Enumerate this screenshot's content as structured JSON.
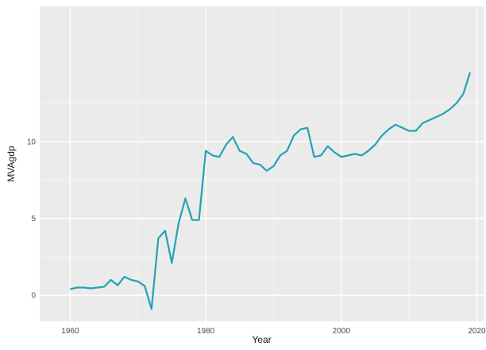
{
  "chart_data": {
    "type": "line",
    "title": "",
    "xlabel": "Year",
    "ylabel": "MVAgdp",
    "xlim": [
      1955.5,
      2021
    ],
    "ylim": [
      -1.7,
      18.8
    ],
    "grid": true,
    "legend": "none",
    "colors": {
      "panel": "#ebebeb",
      "grid_major": "#ffffff",
      "grid_minor": "#f5f5f5",
      "line": "#21a3b3",
      "tick_text": "#4d4d4d",
      "label_text": "#1a1a1a"
    },
    "x_ticks": [
      {
        "value": 1960,
        "label": "1960"
      },
      {
        "value": 1980,
        "label": "1980"
      },
      {
        "value": 2000,
        "label": "2000"
      },
      {
        "value": 2020,
        "label": "2020"
      }
    ],
    "y_ticks": [
      {
        "value": 0,
        "label": "0"
      },
      {
        "value": 5,
        "label": "5"
      },
      {
        "value": 10,
        "label": "10"
      }
    ],
    "series": [
      {
        "x": [
          1960,
          1961,
          1962,
          1963,
          1964,
          1965,
          1966,
          1967,
          1968,
          1969,
          1970,
          1971,
          1972,
          1973,
          1974,
          1975,
          1976,
          1977,
          1978,
          1979,
          1980,
          1981,
          1982,
          1983,
          1984,
          1985,
          1986,
          1987,
          1988,
          1989,
          1990,
          1991,
          1992,
          1993,
          1994,
          1995,
          1996,
          1997,
          1998,
          1999,
          2000,
          2001,
          2002,
          2003,
          2004,
          2005,
          2006,
          2007,
          2008,
          2009,
          2010,
          2011,
          2012,
          2013,
          2014,
          2015,
          2016,
          2017,
          2018,
          2019
        ],
        "values": [
          0.4,
          0.5,
          0.5,
          0.45,
          0.5,
          0.55,
          1.0,
          0.65,
          1.2,
          1.0,
          0.9,
          0.6,
          -0.9,
          3.7,
          4.2,
          2.1,
          4.7,
          6.3,
          4.9,
          4.9,
          9.4,
          9.1,
          9.0,
          9.8,
          10.3,
          9.4,
          9.2,
          8.6,
          8.5,
          8.1,
          8.4,
          9.1,
          9.4,
          10.4,
          10.8,
          10.9,
          9.0,
          9.1,
          9.7,
          9.3,
          9.0,
          9.1,
          9.2,
          9.1,
          9.4,
          9.8,
          10.4,
          10.8,
          11.1,
          10.9,
          10.7,
          10.7,
          11.2,
          11.4,
          11.6,
          11.8,
          12.1,
          12.5,
          13.1,
          14.5
        ]
      }
    ]
  }
}
